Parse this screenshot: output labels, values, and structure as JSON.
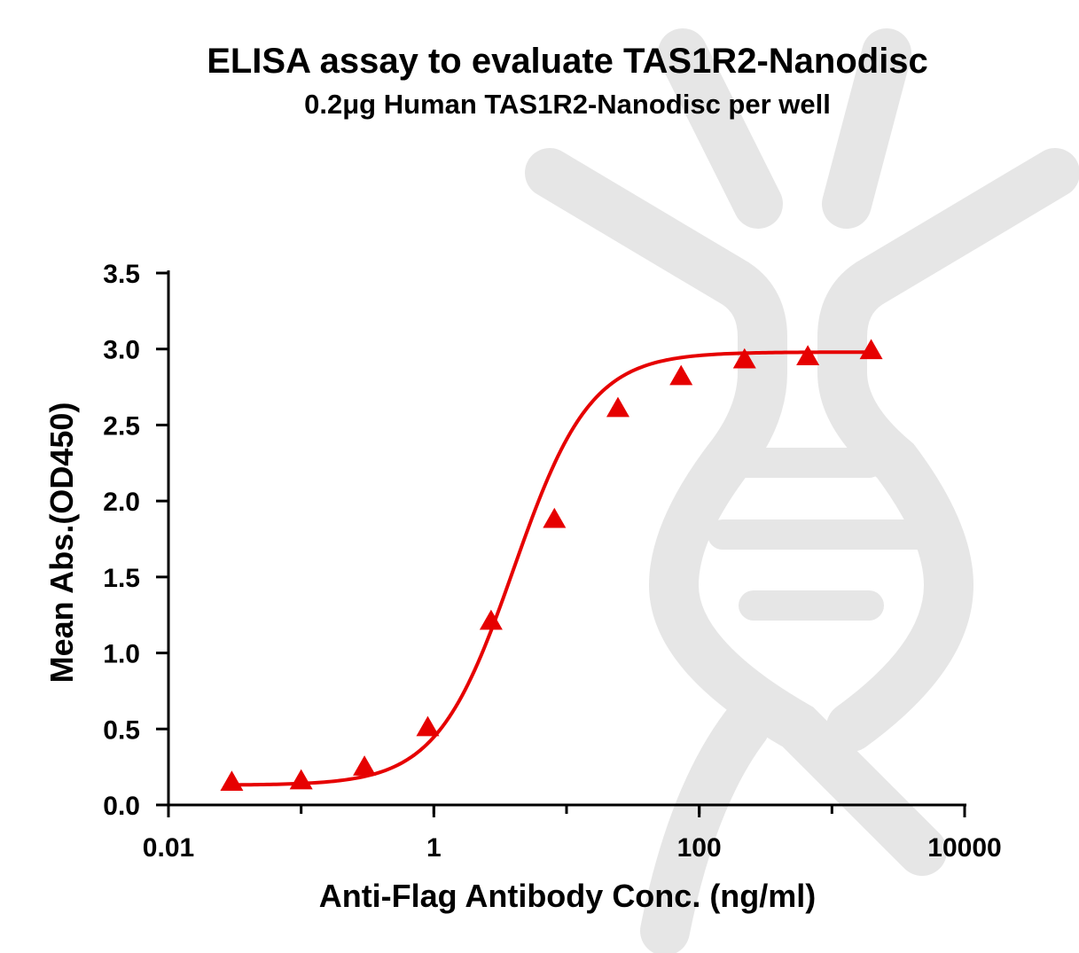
{
  "chart_data": {
    "type": "scatter",
    "title": "ELISA assay to evaluate TAS1R2-Nanodisc",
    "subtitle": "0.2μg Human TAS1R2-Nanodisc per well",
    "xlabel": "Anti-Flag Antibody Conc. (ng/ml)",
    "ylabel": "Mean Abs.(OD450)",
    "xscale": "log",
    "xlim": [
      0.01,
      10000
    ],
    "ylim": [
      0,
      3.5
    ],
    "x_ticks": [
      0.01,
      1,
      100,
      10000
    ],
    "x_tick_labels": [
      "0.01",
      "1",
      "100",
      "10000"
    ],
    "y_ticks": [
      0,
      0.5,
      1,
      1.5,
      2,
      2.5,
      3,
      3.5
    ],
    "y_tick_labels": [
      "0.0",
      "0.5",
      "1.0",
      "1.5",
      "2.0",
      "2.5",
      "3.0",
      "3.5"
    ],
    "grid": false,
    "legend": "none",
    "marker": "triangle",
    "series": [
      {
        "x": [
          0.03,
          0.1,
          0.3,
          0.9,
          2.7,
          8.1,
          24.4,
          73.0,
          219.5,
          658.0,
          1975.0
        ],
        "y": [
          0.15,
          0.16,
          0.25,
          0.51,
          1.21,
          1.88,
          2.61,
          2.82,
          2.93,
          2.95,
          2.99
        ],
        "color": "#e60000",
        "fit": "4PL sigmoid"
      }
    ],
    "fit_curve": {
      "bottom": 0.13,
      "top": 2.98,
      "ec50": 4.0,
      "hill": 1.5
    },
    "watermark": "gray DNA-helix logo"
  }
}
